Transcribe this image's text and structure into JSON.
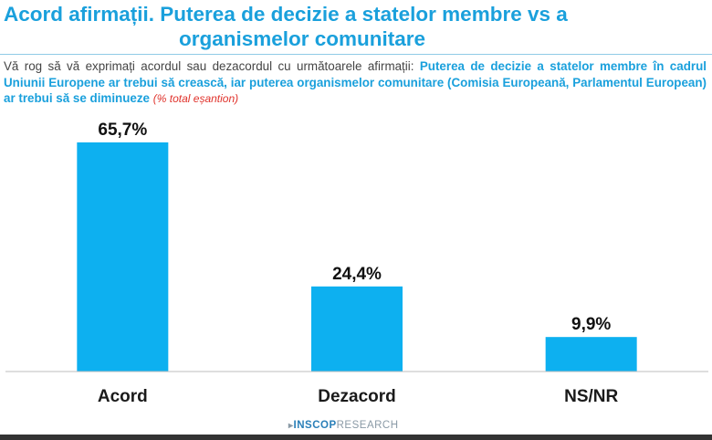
{
  "header": {
    "title_line1": "Acord afirmații. Puterea de decizie a statelor membre vs a",
    "title_line2": "organismelor comunitare"
  },
  "question": {
    "intro": "Vă rog să vă exprimați acordul sau dezacordul cu următoarele afirmații:",
    "statement": "Puterea de decizie a statelor membre în cadrul Uniunii Europene ar trebui să crească, iar puterea  organismelor comunitare (Comisia Europeană, Parlamentul European) ar trebui să se diminueze",
    "note": "(% total eșantion)"
  },
  "chart_data": {
    "type": "bar",
    "categories": [
      "Acord",
      "Dezacord",
      "NS/NR"
    ],
    "values": [
      65.7,
      24.4,
      9.9
    ],
    "value_labels": [
      "65,7%",
      "24,4%",
      "9,9%"
    ],
    "ylim": [
      0,
      100
    ],
    "grid": false,
    "legend": "none",
    "bar_color": "#0db0f0"
  },
  "footer": {
    "logo_mark": "▸",
    "logo_brand": "INSCOP",
    "logo_suffix": "RESEARCH"
  }
}
